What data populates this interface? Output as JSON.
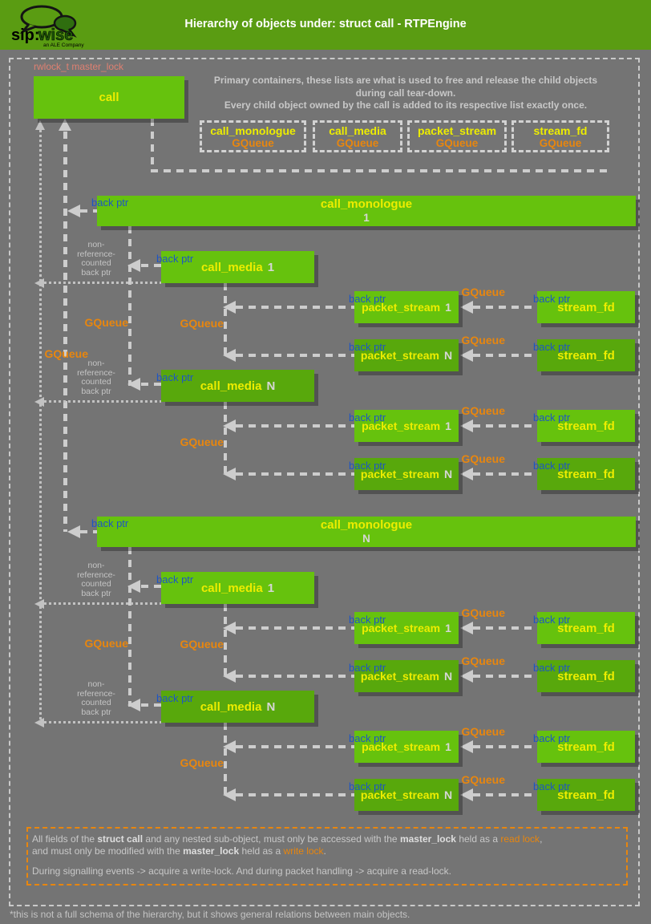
{
  "header": {
    "title": "Hierarchy of objects under: struct call - RTPEngine",
    "logo": {
      "sip": "sip:",
      "wise": "wise",
      "tagline": "an ALE Company"
    }
  },
  "master_lock_label": "rwlock_t master_lock",
  "call_box": {
    "label": "call"
  },
  "intro_lines": [
    "Primary containers, these lists are what is used to free and release the child objects",
    "during call tear-down.",
    "Every child object owned by the call is added to its respective list exactly once."
  ],
  "primary_containers": [
    {
      "name": "call_monologue",
      "container_type": "GQueue"
    },
    {
      "name": "call_media",
      "container_type": "GQueue"
    },
    {
      "name": "packet_stream",
      "container_type": "GQueue"
    },
    {
      "name": "stream_fd",
      "container_type": "GQueue"
    }
  ],
  "labels": {
    "back_ptr": "back ptr",
    "gqueue": "GQueue",
    "non_ref_lines": [
      "non-",
      "reference-",
      "counted",
      "back ptr"
    ]
  },
  "sections": [
    {
      "bar": {
        "title": "call_monologue",
        "index": "1"
      },
      "groups": [
        {
          "media": {
            "title": "call_media",
            "index": "1"
          },
          "streams": [
            {
              "ps_title": "packet_stream",
              "ps_index": "1",
              "sf_title": "stream_fd"
            },
            {
              "ps_title": "packet_stream",
              "ps_index": "N",
              "sf_title": "stream_fd"
            }
          ]
        },
        {
          "media": {
            "title": "call_media",
            "index": "N"
          },
          "streams": [
            {
              "ps_title": "packet_stream",
              "ps_index": "1",
              "sf_title": "stream_fd"
            },
            {
              "ps_title": "packet_stream",
              "ps_index": "N",
              "sf_title": "stream_fd"
            }
          ]
        }
      ]
    },
    {
      "bar": {
        "title": "call_monologue",
        "index": "N"
      },
      "groups": [
        {
          "media": {
            "title": "call_media",
            "index": "1"
          },
          "streams": [
            {
              "ps_title": "packet_stream",
              "ps_index": "1",
              "sf_title": "stream_fd"
            },
            {
              "ps_title": "packet_stream",
              "ps_index": "N",
              "sf_title": "stream_fd"
            }
          ]
        },
        {
          "media": {
            "title": "call_media",
            "index": "N"
          },
          "streams": [
            {
              "ps_title": "packet_stream",
              "ps_index": "1",
              "sf_title": "stream_fd"
            },
            {
              "ps_title": "packet_stream",
              "ps_index": "N",
              "sf_title": "stream_fd"
            }
          ]
        }
      ]
    }
  ],
  "notes": {
    "line1": [
      {
        "t": "All fields of the "
      },
      {
        "t": "struct call",
        "s": "strong"
      },
      {
        "t": " and any nested sub-object, must only be accessed with the "
      },
      {
        "t": "master_lock",
        "s": "strong"
      },
      {
        "t": " held as a "
      },
      {
        "t": "read lock",
        "s": "lock"
      },
      {
        "t": ","
      }
    ],
    "line2": [
      {
        "t": "and must only be modified with the "
      },
      {
        "t": "master_lock",
        "s": "strong"
      },
      {
        "t": " held as a "
      },
      {
        "t": "write lock",
        "s": "lock"
      },
      {
        "t": "."
      }
    ],
    "line3": [
      {
        "t": "During signalling events -> acquire a write-lock. And during packet handling -> acquire a read-lock."
      }
    ]
  },
  "footer_note": "*this is not a full schema of the hierarchy, but it shows general relations between main objects.",
  "colors": {
    "header_green": "#5a9c12",
    "box_green": "#66c20d",
    "box_green_dark": "#58a80c",
    "label_yellow": "#eded00",
    "index_gray": "#d6d6d6",
    "accent_orange": "#e8860e",
    "backptr_blue": "#1d55c4",
    "masterlock_salmon": "#df8071",
    "text_gray": "#c8c8c8",
    "line_gray": "#cdcdcd"
  }
}
